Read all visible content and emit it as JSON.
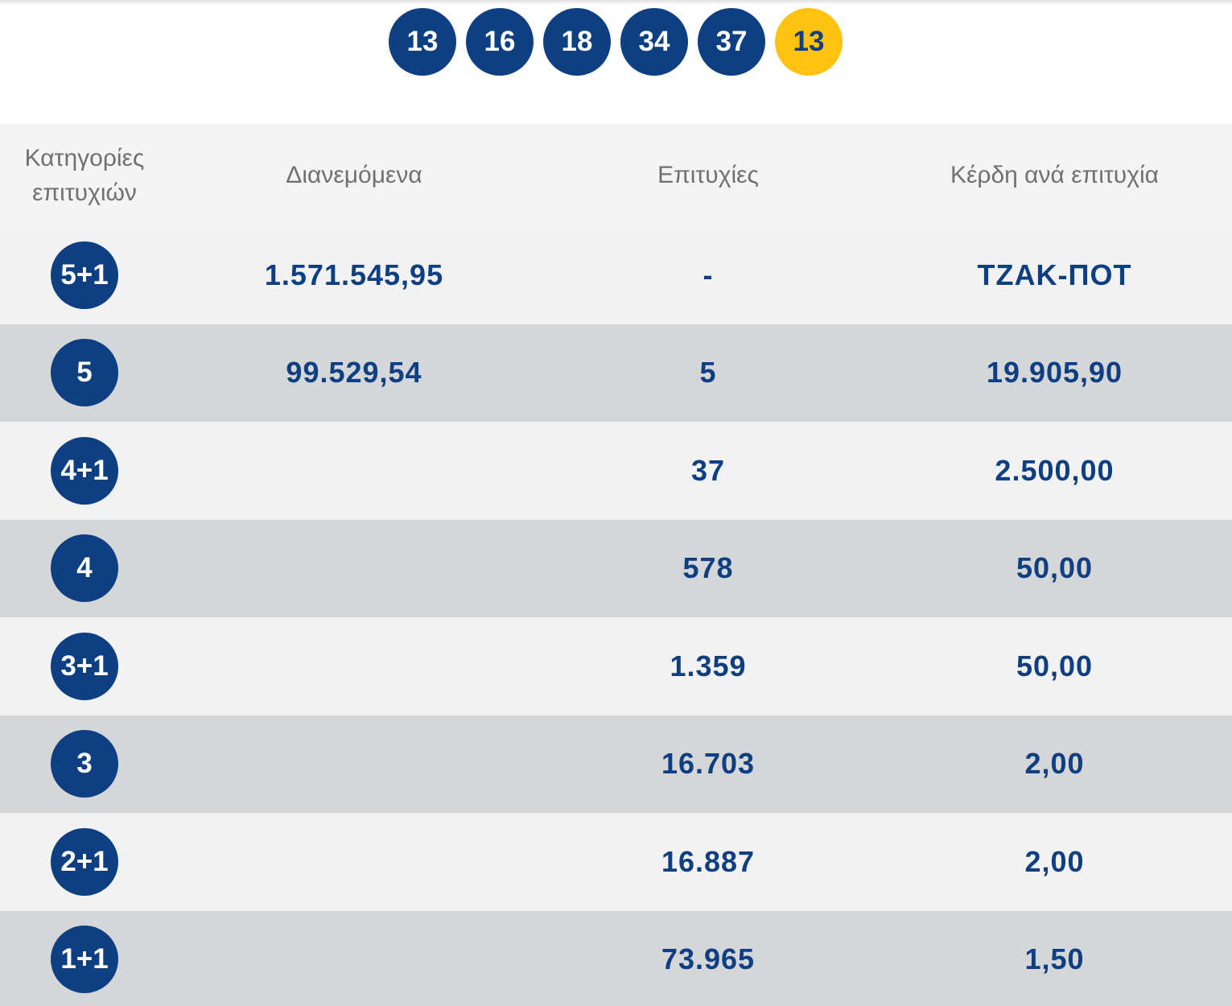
{
  "draw": {
    "numbers": [
      "13",
      "16",
      "18",
      "34",
      "37"
    ],
    "bonus": "13",
    "colors": {
      "ball": "#0e3f82",
      "bonus": "#ffc20e"
    }
  },
  "table": {
    "headers": {
      "category_line1": "Κατηγορίες",
      "category_line2": "επιτυχιών",
      "distributed": "Διανεμόμενα",
      "winners": "Επιτυχίες",
      "prize": "Κέρδη ανά επιτυχία"
    },
    "rows": [
      {
        "category": "5+1",
        "distributed": "1.571.545,95",
        "winners": "-",
        "prize": "ΤΖΑΚ-ΠΟΤ"
      },
      {
        "category": "5",
        "distributed": "99.529,54",
        "winners": "5",
        "prize": "19.905,90"
      },
      {
        "category": "4+1",
        "distributed": "",
        "winners": "37",
        "prize": "2.500,00"
      },
      {
        "category": "4",
        "distributed": "",
        "winners": "578",
        "prize": "50,00"
      },
      {
        "category": "3+1",
        "distributed": "",
        "winners": "1.359",
        "prize": "50,00"
      },
      {
        "category": "3",
        "distributed": "",
        "winners": "16.703",
        "prize": "2,00"
      },
      {
        "category": "2+1",
        "distributed": "",
        "winners": "16.887",
        "prize": "2,00"
      },
      {
        "category": "1+1",
        "distributed": "",
        "winners": "73.965",
        "prize": "1,50"
      }
    ]
  }
}
